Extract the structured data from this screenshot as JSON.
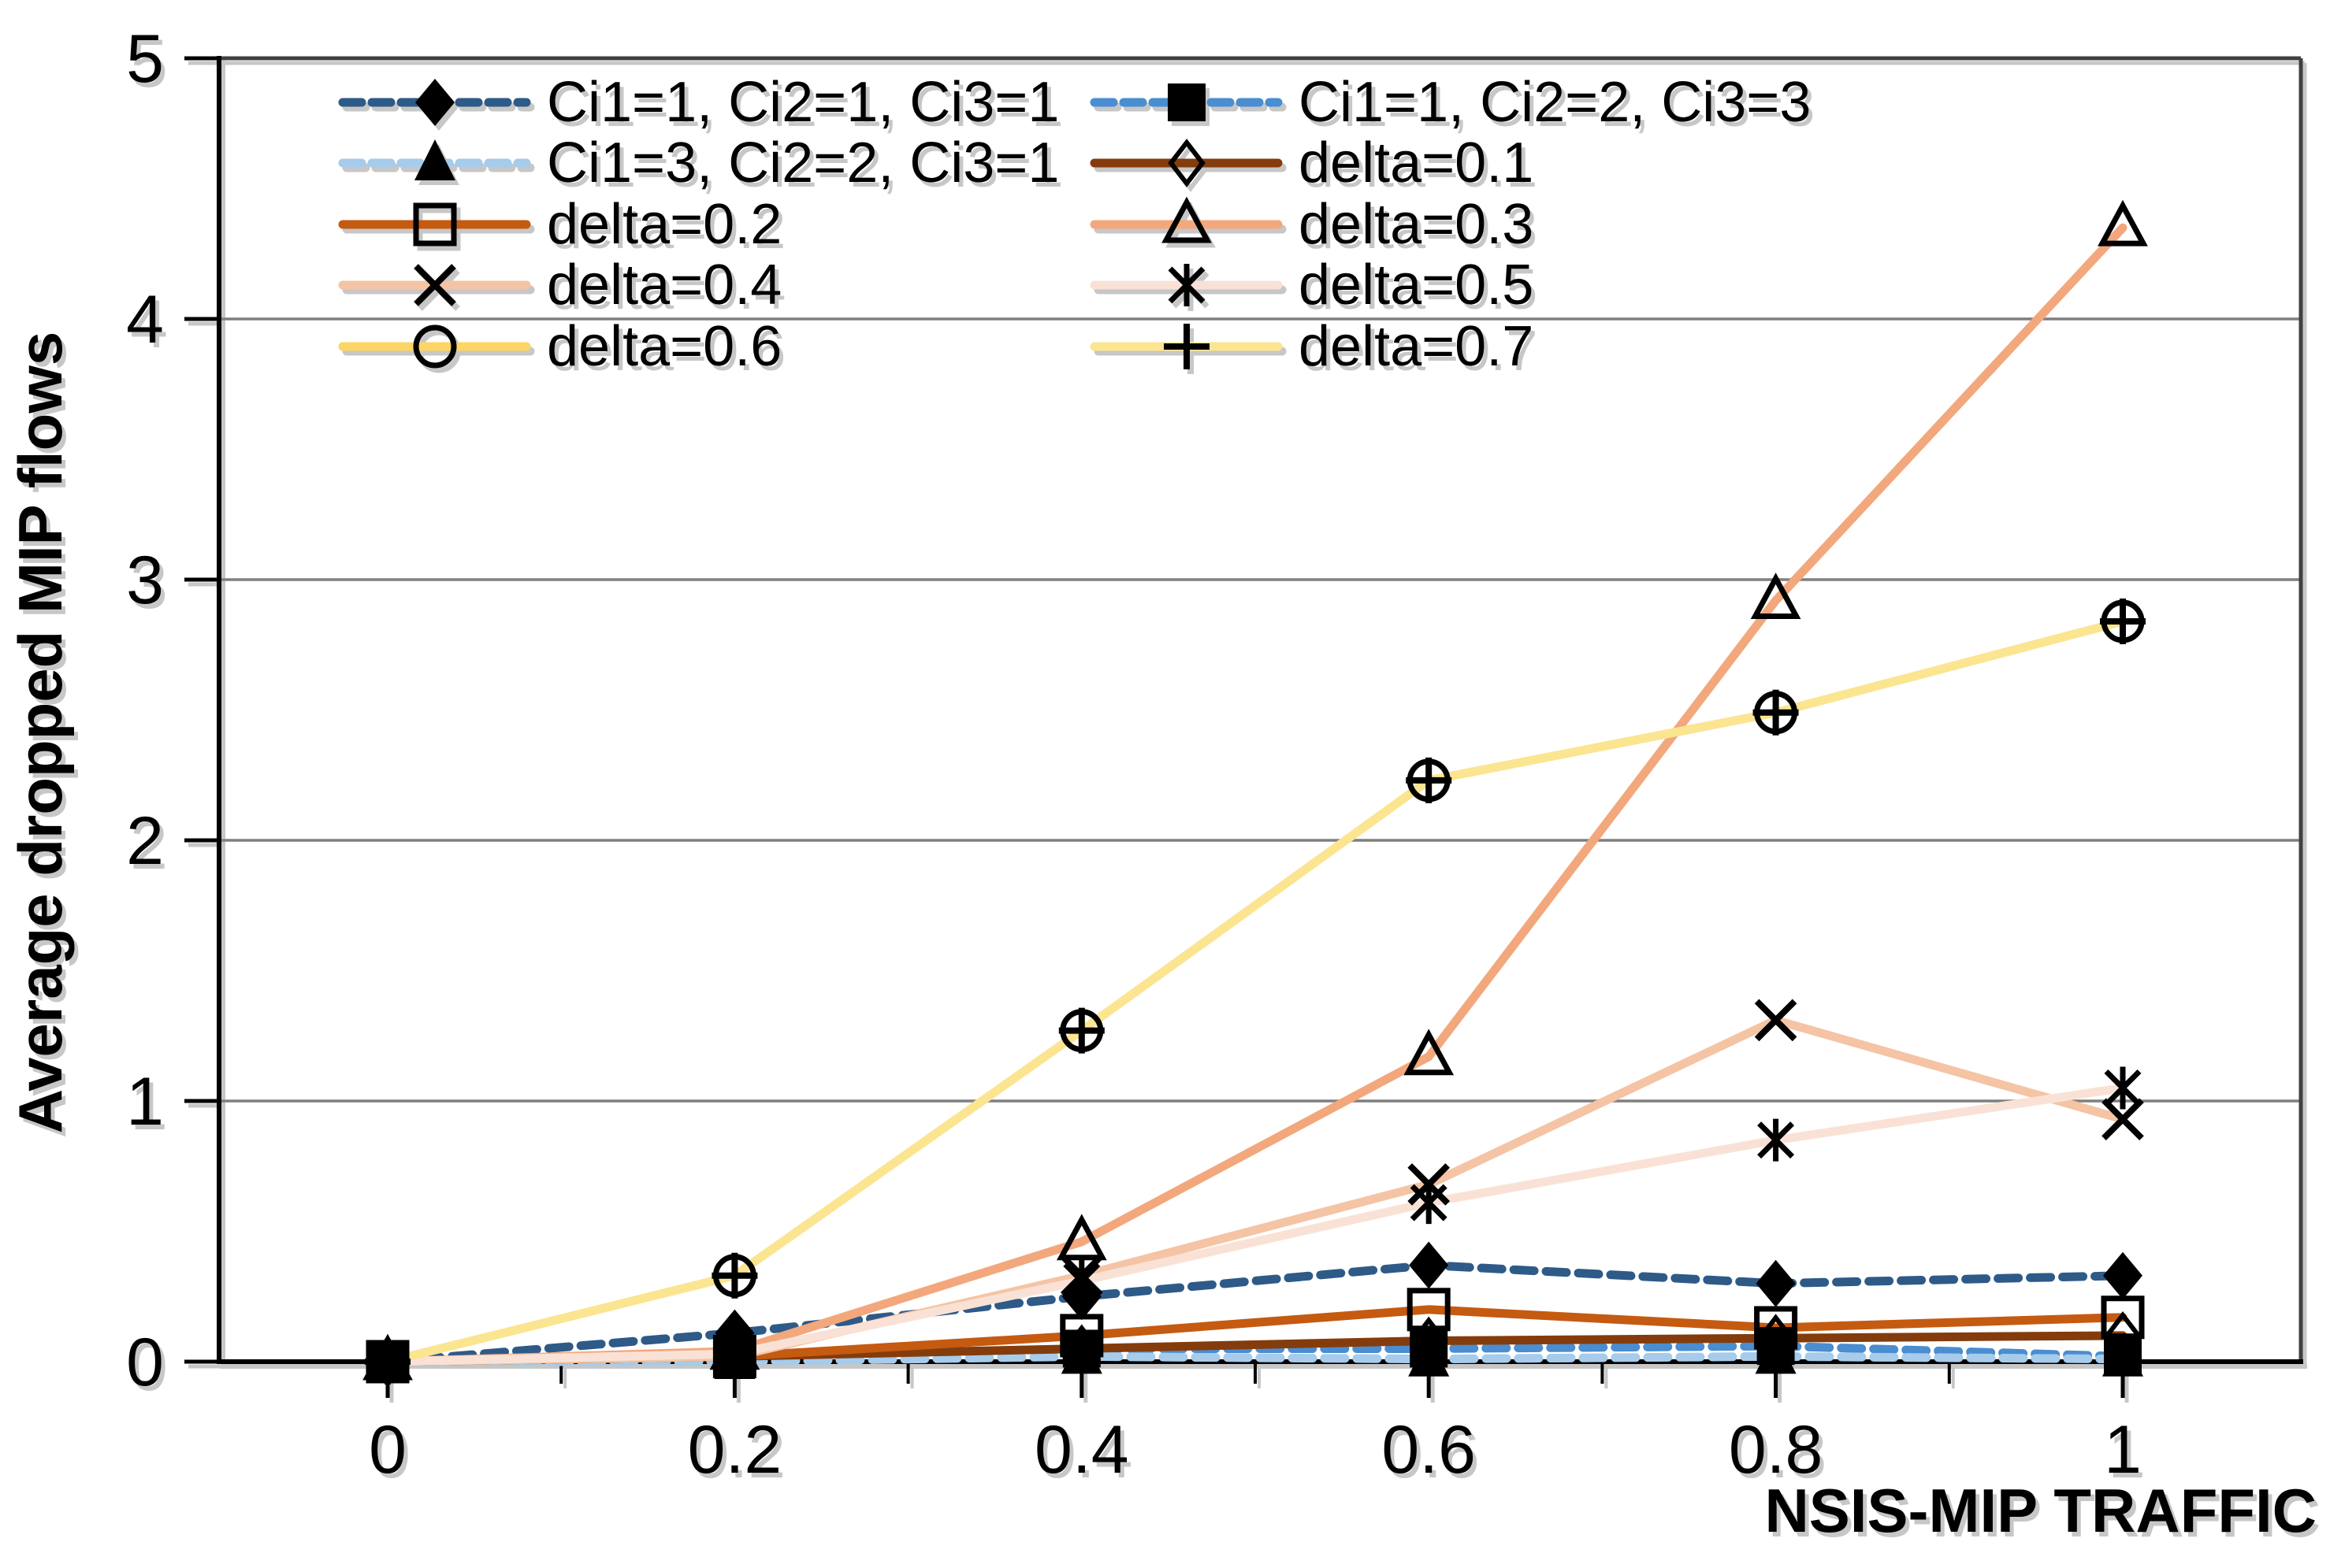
{
  "chart_data": {
    "type": "line",
    "title": "",
    "xlabel": "NSIS-MIP TRAFFIC",
    "ylabel": "Average dropped MIP flows",
    "x": [
      0,
      0.2,
      0.4,
      0.6,
      0.8,
      1
    ],
    "x_tick_labels": [
      "0",
      "0.2",
      "0.4",
      "0.6",
      "0.8",
      "1"
    ],
    "x_minor_ticks": [
      0.1,
      0.3,
      0.5,
      0.7,
      0.9
    ],
    "y_ticks": [
      0,
      1,
      2,
      3,
      4,
      5
    ],
    "y_tick_labels": [
      "0",
      "1",
      "2",
      "3",
      "4",
      "5"
    ],
    "xlim": [
      0,
      1.103
    ],
    "ylim": [
      0,
      5
    ],
    "grid": "horizontal",
    "legend_position": "top-left-inside-two-columns",
    "marker_color": "#000000",
    "axis_color": "#000000",
    "frame_color": "#404040",
    "grid_color": "#7f7f7f",
    "series": [
      {
        "name": "Ci1=1, Ci2=1, Ci3=1",
        "color": "#2E5A88",
        "line": "dashed",
        "marker": "diamond-filled",
        "values": [
          0,
          0.11,
          0.25,
          0.37,
          0.3,
          0.33
        ]
      },
      {
        "name": "Ci1=1, Ci2=2, Ci3=3",
        "color": "#4A8DD0",
        "line": "dashed",
        "marker": "square-filled",
        "values": [
          0,
          0.01,
          0.05,
          0.05,
          0.06,
          0.02
        ]
      },
      {
        "name": "Ci1=3, Ci2=2, Ci3=1",
        "color": "#A6CBEB",
        "line": "dashed",
        "marker": "triangle-filled",
        "values": [
          0,
          0.0,
          0.02,
          0.01,
          0.02,
          0.01
        ]
      },
      {
        "name": "delta=0.1",
        "color": "#843C0C",
        "line": "solid",
        "marker": "diamond-open",
        "values": [
          0,
          0.02,
          0.05,
          0.08,
          0.09,
          0.1
        ]
      },
      {
        "name": "delta=0.2",
        "color": "#C55A11",
        "line": "solid",
        "marker": "square-open",
        "values": [
          0,
          0.02,
          0.1,
          0.2,
          0.13,
          0.17
        ]
      },
      {
        "name": "delta=0.3",
        "color": "#F2A87C",
        "line": "solid",
        "marker": "triangle-open",
        "values": [
          0,
          0.04,
          0.46,
          1.17,
          2.92,
          4.35
        ]
      },
      {
        "name": "delta=0.4",
        "color": "#F4C4A4",
        "line": "solid",
        "marker": "x",
        "values": [
          0,
          0.02,
          0.33,
          0.68,
          1.31,
          0.93
        ]
      },
      {
        "name": "delta=0.5",
        "color": "#F9E2D5",
        "line": "solid",
        "marker": "asterisk",
        "values": [
          0,
          0.03,
          0.31,
          0.61,
          0.85,
          1.05
        ]
      },
      {
        "name": "delta=0.6",
        "color": "#FBD565",
        "line": "solid",
        "marker": "circle-open",
        "values": [
          0,
          0.33,
          1.27,
          2.23,
          2.49,
          2.84
        ]
      },
      {
        "name": "delta=0.7",
        "color": "#FBE591",
        "line": "solid",
        "marker": "plus",
        "values": [
          0,
          0.33,
          1.27,
          2.23,
          2.49,
          2.84
        ]
      }
    ]
  }
}
